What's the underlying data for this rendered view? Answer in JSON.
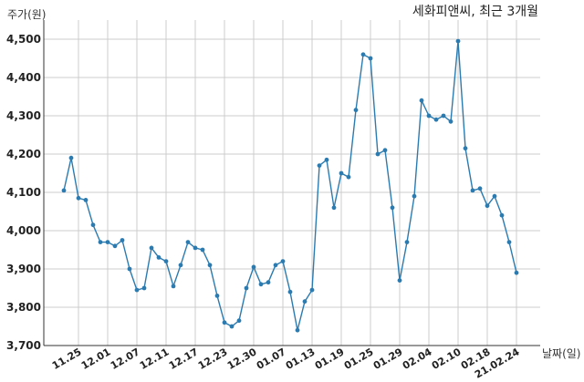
{
  "chart_data": {
    "type": "line",
    "title": "세화피앤씨, 최근 3개월",
    "ylabel": "주가(원)",
    "xlabel": "날짜(일)",
    "ylim": [
      3700,
      4550
    ],
    "yticks": [
      3700,
      3800,
      3900,
      4000,
      4100,
      4200,
      4300,
      4400,
      4500
    ],
    "ytick_labels": [
      "3,700",
      "3,800",
      "3,900",
      "4,000",
      "4,100",
      "4,200",
      "4,300",
      "4,400",
      "4,500"
    ],
    "xtick_labels": [
      "11.25",
      "12.01",
      "12.07",
      "12.11",
      "12.17",
      "12.23",
      "12.30",
      "01.07",
      "01.13",
      "01.19",
      "01.25",
      "01.29",
      "02.04",
      "02.10",
      "02.18",
      "21.02.24"
    ],
    "xtick_indices": [
      2,
      6,
      10,
      14,
      18,
      22,
      26,
      30,
      34,
      38,
      42,
      46,
      50,
      54,
      58,
      62
    ],
    "grid": true,
    "colors": {
      "line": "#2b7bb0",
      "grid": "#cccccc",
      "axis": "#333333"
    },
    "series": [
      {
        "values": [
          4105,
          4190,
          4085,
          4080,
          4015,
          3970,
          3970,
          3960,
          3975,
          3900,
          3845,
          3850,
          3955,
          3930,
          3920,
          3855,
          3910,
          3970,
          3955,
          3950,
          3910,
          3830,
          3760,
          3750,
          3765,
          3850,
          3905,
          3860,
          3865,
          3910,
          3920,
          3840,
          3740,
          3815,
          3845,
          4170,
          4185,
          4060,
          4150,
          4140,
          4315,
          4460,
          4450,
          4200,
          4210,
          4060,
          3870,
          3970,
          4090,
          4340,
          4300,
          4290,
          4300,
          4285,
          4495,
          4215,
          4105,
          4110,
          4065,
          4090,
          4040,
          3970,
          3890
        ]
      }
    ]
  }
}
